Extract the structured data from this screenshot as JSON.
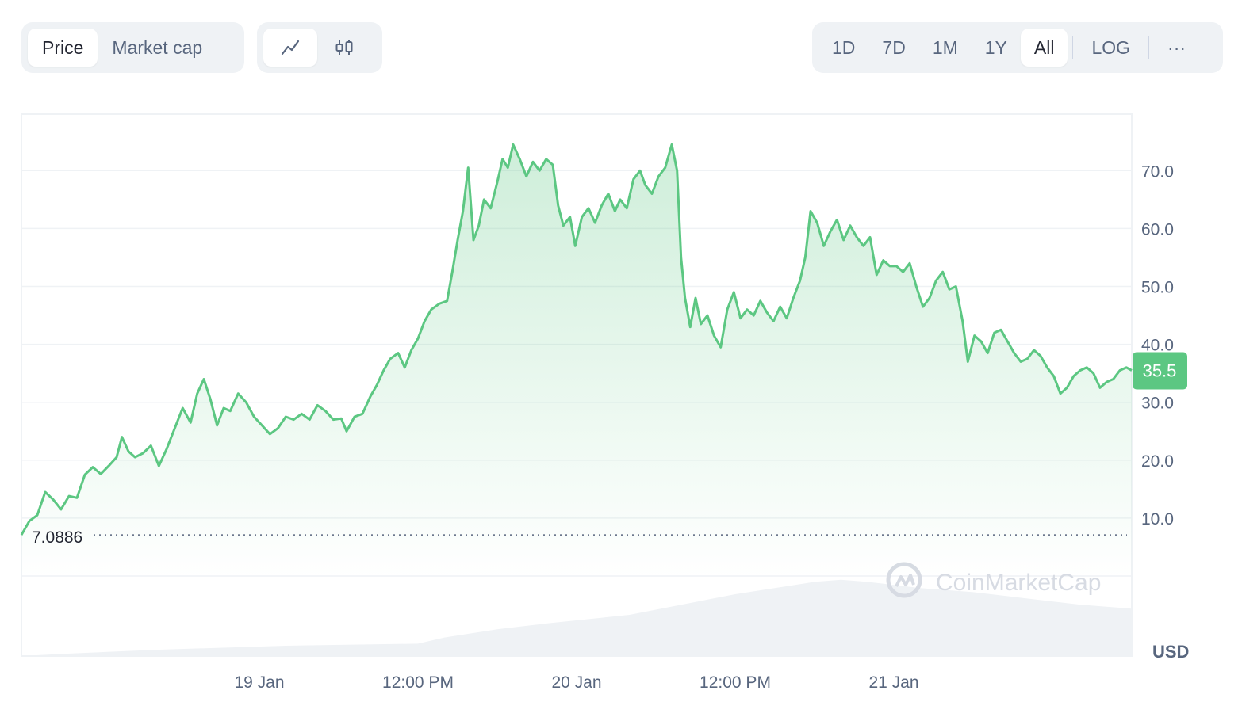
{
  "toolbar": {
    "metric_tabs": [
      {
        "label": "Price",
        "active": true
      },
      {
        "label": "Market cap",
        "active": false
      }
    ],
    "mode_buttons": [
      {
        "icon": "line-chart-icon",
        "active": true
      },
      {
        "icon": "candlestick-icon",
        "active": false
      }
    ],
    "range_buttons": [
      {
        "label": "1D",
        "active": false
      },
      {
        "label": "7D",
        "active": false
      },
      {
        "label": "1M",
        "active": false
      },
      {
        "label": "1Y",
        "active": false
      },
      {
        "label": "All",
        "active": true
      }
    ],
    "log_label": "LOG",
    "more_label": "···"
  },
  "chart_data": {
    "type": "area",
    "title": "",
    "currency_label": "USD",
    "watermark": "CoinMarketCap",
    "colors": {
      "line": "#5cc782",
      "price_tag": "#5cc782",
      "volume": "#eff2f5",
      "grid": "#eff2f5"
    },
    "ylim": [
      0,
      80
    ],
    "y_ticks": [
      10,
      20,
      30,
      40,
      50,
      60,
      70
    ],
    "y_tick_labels": [
      "10.0",
      "20.0",
      "30.0",
      "40.0",
      "50.0",
      "60.0",
      "70.0"
    ],
    "x_range_hours": [
      0,
      84
    ],
    "x_ticks": [
      {
        "label": "19 Jan",
        "t": 18
      },
      {
        "label": "12:00 PM",
        "t": 30
      },
      {
        "label": "20 Jan",
        "t": 42
      },
      {
        "label": "12:00 PM",
        "t": 54
      },
      {
        "label": "21 Jan",
        "t": 66
      }
    ],
    "open_price": 7.0886,
    "open_price_label": "7.0886",
    "current_price": 35.5,
    "current_price_label": "35.5",
    "series": [
      {
        "points": [
          [
            0,
            7.1
          ],
          [
            0.6,
            9.5
          ],
          [
            1.2,
            10.5
          ],
          [
            1.8,
            14.5
          ],
          [
            2.4,
            13.2
          ],
          [
            3.0,
            11.5
          ],
          [
            3.6,
            13.8
          ],
          [
            4.2,
            13.5
          ],
          [
            4.8,
            17.5
          ],
          [
            5.4,
            18.8
          ],
          [
            6.0,
            17.6
          ],
          [
            6.6,
            19.0
          ],
          [
            7.2,
            20.5
          ],
          [
            7.6,
            24.0
          ],
          [
            8.1,
            21.5
          ],
          [
            8.6,
            20.5
          ],
          [
            9.2,
            21.2
          ],
          [
            9.8,
            22.5
          ],
          [
            10.4,
            19.0
          ],
          [
            11.0,
            22.0
          ],
          [
            11.6,
            25.5
          ],
          [
            12.2,
            29.0
          ],
          [
            12.8,
            26.5
          ],
          [
            13.3,
            31.5
          ],
          [
            13.8,
            34.0
          ],
          [
            14.3,
            30.5
          ],
          [
            14.8,
            26.0
          ],
          [
            15.3,
            29.0
          ],
          [
            15.8,
            28.5
          ],
          [
            16.4,
            31.5
          ],
          [
            17.0,
            30.0
          ],
          [
            17.6,
            27.5
          ],
          [
            18.2,
            26.0
          ],
          [
            18.8,
            24.5
          ],
          [
            19.4,
            25.5
          ],
          [
            20.0,
            27.5
          ],
          [
            20.6,
            27.0
          ],
          [
            21.2,
            28.0
          ],
          [
            21.8,
            27.0
          ],
          [
            22.4,
            29.5
          ],
          [
            23.0,
            28.5
          ],
          [
            23.6,
            27.0
          ],
          [
            24.2,
            27.2
          ],
          [
            24.6,
            25.0
          ],
          [
            25.2,
            27.5
          ],
          [
            25.8,
            28.0
          ],
          [
            26.4,
            31.0
          ],
          [
            26.9,
            33.0
          ],
          [
            27.4,
            35.5
          ],
          [
            27.9,
            37.5
          ],
          [
            28.5,
            38.5
          ],
          [
            29.0,
            36.0
          ],
          [
            29.5,
            39.0
          ],
          [
            30.0,
            41.0
          ],
          [
            30.5,
            44.0
          ],
          [
            31.0,
            46.0
          ],
          [
            31.6,
            47.0
          ],
          [
            32.2,
            47.5
          ],
          [
            32.6,
            52.5
          ],
          [
            33.0,
            58.0
          ],
          [
            33.4,
            63.0
          ],
          [
            33.8,
            70.5
          ],
          [
            34.2,
            58.0
          ],
          [
            34.6,
            60.5
          ],
          [
            35.0,
            65.0
          ],
          [
            35.5,
            63.5
          ],
          [
            36.0,
            68.0
          ],
          [
            36.4,
            72.0
          ],
          [
            36.8,
            70.5
          ],
          [
            37.2,
            74.5
          ],
          [
            37.7,
            72.0
          ],
          [
            38.2,
            69.0
          ],
          [
            38.7,
            71.5
          ],
          [
            39.2,
            70.0
          ],
          [
            39.7,
            72.0
          ],
          [
            40.2,
            71.0
          ],
          [
            40.6,
            64.0
          ],
          [
            41.0,
            60.5
          ],
          [
            41.5,
            62.0
          ],
          [
            41.9,
            57.0
          ],
          [
            42.4,
            62.0
          ],
          [
            42.9,
            63.5
          ],
          [
            43.4,
            61.0
          ],
          [
            43.9,
            64.0
          ],
          [
            44.4,
            66.0
          ],
          [
            44.9,
            63.0
          ],
          [
            45.3,
            65.0
          ],
          [
            45.8,
            63.5
          ],
          [
            46.3,
            68.5
          ],
          [
            46.8,
            70.0
          ],
          [
            47.2,
            67.5
          ],
          [
            47.7,
            66.0
          ],
          [
            48.2,
            69.0
          ],
          [
            48.7,
            70.5
          ],
          [
            49.2,
            74.5
          ],
          [
            49.6,
            70.0
          ],
          [
            49.9,
            55.0
          ],
          [
            50.2,
            48.0
          ],
          [
            50.6,
            43.0
          ],
          [
            51.0,
            48.0
          ],
          [
            51.4,
            43.5
          ],
          [
            51.9,
            45.0
          ],
          [
            52.4,
            41.5
          ],
          [
            52.9,
            39.5
          ],
          [
            53.4,
            46.0
          ],
          [
            53.9,
            49.0
          ],
          [
            54.4,
            44.5
          ],
          [
            54.9,
            46.0
          ],
          [
            55.4,
            45.0
          ],
          [
            55.9,
            47.5
          ],
          [
            56.4,
            45.5
          ],
          [
            56.9,
            44.0
          ],
          [
            57.4,
            46.5
          ],
          [
            57.9,
            44.5
          ],
          [
            58.4,
            48.0
          ],
          [
            58.9,
            51.0
          ],
          [
            59.3,
            55.0
          ],
          [
            59.7,
            63.0
          ],
          [
            60.2,
            61.0
          ],
          [
            60.7,
            57.0
          ],
          [
            61.2,
            59.5
          ],
          [
            61.7,
            61.5
          ],
          [
            62.2,
            58.0
          ],
          [
            62.7,
            60.5
          ],
          [
            63.2,
            58.5
          ],
          [
            63.7,
            57.0
          ],
          [
            64.2,
            58.5
          ],
          [
            64.7,
            52.0
          ],
          [
            65.2,
            54.5
          ],
          [
            65.7,
            53.5
          ],
          [
            66.2,
            53.5
          ],
          [
            66.7,
            52.5
          ],
          [
            67.2,
            54.0
          ],
          [
            67.7,
            50.0
          ],
          [
            68.2,
            46.5
          ],
          [
            68.7,
            48.0
          ],
          [
            69.2,
            51.0
          ],
          [
            69.7,
            52.5
          ],
          [
            70.2,
            49.5
          ],
          [
            70.7,
            50.0
          ],
          [
            71.2,
            44.0
          ],
          [
            71.6,
            37.0
          ],
          [
            72.1,
            41.5
          ],
          [
            72.6,
            40.5
          ],
          [
            73.1,
            38.5
          ],
          [
            73.6,
            42.0
          ],
          [
            74.1,
            42.5
          ],
          [
            74.6,
            40.5
          ],
          [
            75.1,
            38.5
          ],
          [
            75.6,
            37.0
          ],
          [
            76.1,
            37.5
          ],
          [
            76.6,
            39.0
          ],
          [
            77.1,
            38.0
          ],
          [
            77.6,
            36.0
          ],
          [
            78.1,
            34.5
          ],
          [
            78.6,
            31.5
          ],
          [
            79.1,
            32.5
          ],
          [
            79.6,
            34.5
          ],
          [
            80.1,
            35.5
          ],
          [
            80.6,
            36.0
          ],
          [
            81.1,
            35.0
          ],
          [
            81.6,
            32.5
          ],
          [
            82.1,
            33.5
          ],
          [
            82.6,
            34.0
          ],
          [
            83.1,
            35.5
          ],
          [
            83.6,
            36.0
          ],
          [
            84.0,
            35.5
          ]
        ]
      }
    ]
  }
}
